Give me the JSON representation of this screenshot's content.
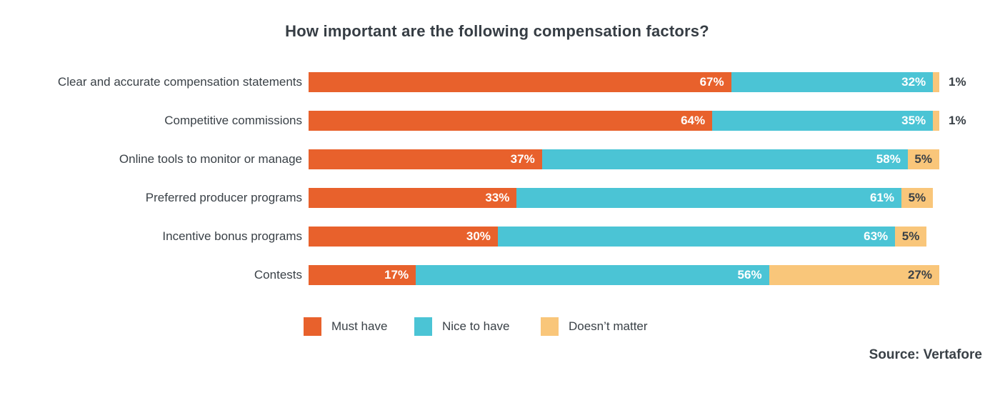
{
  "title": "How important are the following compensation factors?",
  "source_label": "Source: Vertafore",
  "colors": {
    "must_have": "#E8612C",
    "nice_to_have": "#4BC4D5",
    "doesnt_matter": "#F9C67A",
    "text_dark": "#3A4147"
  },
  "legend": [
    {
      "label": "Must have",
      "color_key": "must_have"
    },
    {
      "label": "Nice to have",
      "color_key": "nice_to_have"
    },
    {
      "label": "Doesn’t matter",
      "color_key": "doesnt_matter"
    }
  ],
  "chart_data": {
    "type": "bar",
    "orientation": "horizontal",
    "stacked": true,
    "unit": "%",
    "xlim": [
      0,
      100
    ],
    "grid": false,
    "legend_position": "bottom",
    "title": "How important are the following compensation factors?",
    "categories": [
      "Clear and accurate compensation statements",
      "Competitive commissions",
      "Online tools to monitor or manage",
      "Preferred producer programs",
      "Incentive bonus programs",
      "Contests"
    ],
    "series": [
      {
        "name": "Must have",
        "color": "#E8612C",
        "values": [
          67,
          64,
          37,
          33,
          30,
          17
        ]
      },
      {
        "name": "Nice to have",
        "color": "#4BC4D5",
        "values": [
          32,
          35,
          58,
          61,
          63,
          56
        ]
      },
      {
        "name": "Doesn't matter",
        "color": "#F9C67A",
        "values": [
          1,
          1,
          5,
          5,
          5,
          27
        ]
      }
    ]
  }
}
